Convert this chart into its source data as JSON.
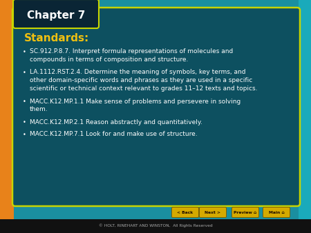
{
  "title": "Chapter 7",
  "standards_label": "Standards:",
  "bullet_points": [
    "SC.912.P.8.7. Interpret formula representations of molecules and\ncompounds in terms of composition and structure.",
    "LA.1112.RST.2.4. Determine the meaning of symbols, key terms, and\nother domain-specific words and phrases as they are used in a specific\nscientific or technical context relevant to grades 11–12 texts and topics.",
    "MACC.K12.MP.1.1 Make sense of problems and persevere in solving\nthem.",
    "MACC.K12.MP.2.1 Reason abstractly and quantitatively.",
    "MACC.K12.MP.7.1 Look for and make use of structure."
  ],
  "bg_outer": "#e8821a",
  "bg_teal_light": "#1a8fa0",
  "bg_teal_right": "#1aaabb",
  "bg_panel": "#0d5060",
  "panel_border": "#c8d400",
  "chapter_box_bg": "#0a2535",
  "chapter_text_color": "#ffffff",
  "standards_color": "#f0c010",
  "bullet_text_color": "#ffffff",
  "footer_bg": "#111111",
  "footer_text": "© HOLT, RINEHART AND WINSTON,  All Rights Reserved",
  "nav_buttons": [
    "< Back",
    "Next >",
    "Preview  n",
    "Main  n"
  ],
  "nav_button_bg": "#d4aa00",
  "nav_button_text": "#1a0a00"
}
